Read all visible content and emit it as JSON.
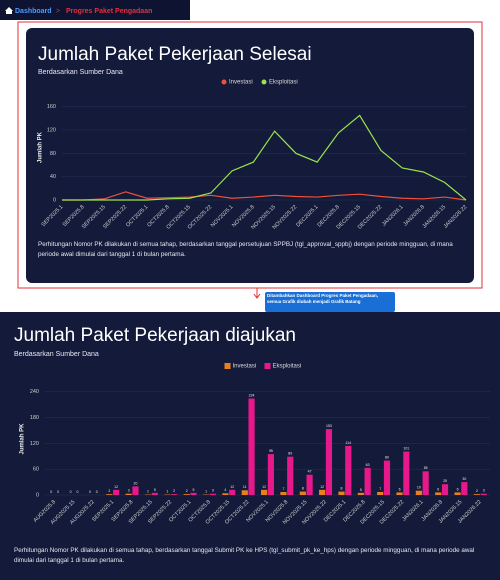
{
  "breadcrumb": {
    "home": "Dashboard",
    "current": "Progres Paket Pengadaan"
  },
  "annotation": "Ditambahkan Dashboard Progres Paket Pengadaan, semua Grafik diubah menjadi Grafik Batang",
  "chart_data": [
    {
      "type": "line",
      "title": "Jumlah Paket Pekerjaan Selesai",
      "subtitle": "Berdasarkan Sumber Dana",
      "ylabel": "Jumlah PK",
      "categories": [
        "SEP2025.1",
        "SEP2025.8",
        "SEP2025.15",
        "SEP2025.22",
        "OCT2025.1",
        "OCT2025.8",
        "OCT2025.15",
        "OCT2025.22",
        "NOV2025.1",
        "NOV2025.8",
        "NOV2025.15",
        "NOV2025.22",
        "DEC2025.1",
        "DEC2025.8",
        "DEC2025.15",
        "DEC2025.22",
        "JAN2026.1",
        "JAN2026.8",
        "JAN2026.15",
        "JAN2026.22"
      ],
      "series": [
        {
          "name": "Investasi",
          "color": "#f0503c",
          "values": [
            0,
            0,
            2,
            14,
            3,
            4,
            5,
            8,
            3,
            5,
            8,
            6,
            5,
            8,
            10,
            6,
            3,
            2,
            5,
            0
          ]
        },
        {
          "name": "Eksploitasi",
          "color": "#9be34a",
          "values": [
            0,
            0,
            0,
            0,
            0,
            2,
            3,
            12,
            50,
            65,
            118,
            80,
            65,
            115,
            145,
            85,
            55,
            48,
            30,
            0
          ]
        }
      ],
      "ylim": [
        0,
        180
      ],
      "yticks": [
        0,
        40,
        80,
        120,
        160
      ],
      "grid": true,
      "note": "Perhitungan Nomor PK dilakukan di semua tahap, berdasarkan tanggal persetujuan SPPBJ (tgl_approval_sppbj) dengan periode mingguan, di mana periode awal dimulai dari tanggal 1 di bulan pertama."
    },
    {
      "type": "bar",
      "title": "Jumlah Paket Pekerjaan diajukan",
      "subtitle": "Berdasarkan Sumber Dana",
      "ylabel": "Jumlah PK",
      "categories": [
        "AUG2025.8",
        "AUG2025.15",
        "AUG2025.22",
        "SEP2025.1",
        "SEP2025.8",
        "SEP2025.15",
        "SEP2025.22",
        "OCT2025.1",
        "OCT2025.8",
        "OCT2025.15",
        "OCT2025.22",
        "NOV2025.1",
        "NOV2025.8",
        "NOV2025.15",
        "NOV2025.22",
        "DEC2025.1",
        "DEC2025.8",
        "DEC2025.15",
        "DEC2025.22",
        "JAN2026.1",
        "JAN2026.8",
        "JAN2026.15",
        "JAN2026.22"
      ],
      "series": [
        {
          "name": "Investasi",
          "color": "#e8801e",
          "values": [
            0,
            0,
            0,
            2,
            3,
            1,
            1,
            2,
            1,
            4,
            11,
            12,
            7,
            8,
            12,
            8,
            5,
            7,
            6,
            10,
            6,
            6,
            2
          ]
        },
        {
          "name": "Eksploitasi",
          "color": "#e6188a",
          "values": [
            0,
            0,
            0,
            12,
            20,
            5,
            2,
            5,
            3,
            12,
            224,
            95,
            89,
            47,
            153,
            114,
            63,
            80,
            101,
            55,
            25,
            30,
            3
          ]
        }
      ],
      "ylim": [
        0,
        260
      ],
      "yticks": [
        0,
        60,
        120,
        180,
        240
      ],
      "grid": true,
      "note": "Perhitungan Nomor PK dilakukan di semua tahap, berdasarkan tanggal Submit PK ke HPS (tgl_submit_pk_ke_hps) dengan periode mingguan, di mana periode awal dimulai dari tanggal 1 di bulan pertama."
    }
  ]
}
